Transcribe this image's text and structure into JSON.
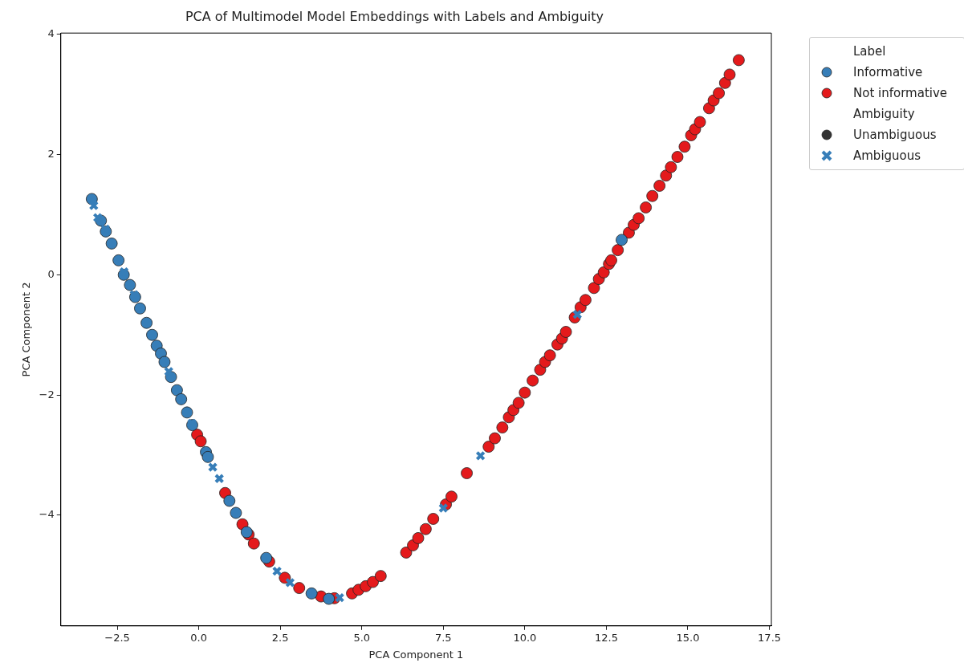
{
  "chart_data": {
    "type": "scatter",
    "title": "PCA of Multimodel Model Embeddings with Labels and Ambiguity",
    "xlabel": "PCA Component 1",
    "ylabel": "PCA Component 2",
    "legend_title": "Label",
    "annotations": [
      "Ambiguity",
      "Unambiguous"
    ],
    "legend": "top right",
    "grid": false,
    "xlim": [
      -4.23,
      17.56
    ],
    "ylim": [
      -5.84,
      4.02
    ],
    "xticks": [
      {
        "value": -2.5,
        "label": "−2.5"
      },
      {
        "value": 0,
        "label": "0.0"
      },
      {
        "value": 2.5,
        "label": "2.5"
      },
      {
        "value": 5,
        "label": "5.0"
      },
      {
        "value": 7.5,
        "label": "7.5"
      },
      {
        "value": 10,
        "label": "10.0"
      },
      {
        "value": 12.5,
        "label": "12.5"
      },
      {
        "value": 15,
        "label": "15.0"
      },
      {
        "value": 17.5,
        "label": "17.5"
      }
    ],
    "yticks": [
      {
        "value": -4,
        "label": "−4"
      },
      {
        "value": -2,
        "label": "−2"
      },
      0,
      2,
      4
    ],
    "series": [
      {
        "name": "Informative",
        "color": "#377eb8",
        "marker": "circle",
        "x": [
          -3.28,
          -3.0,
          -2.85,
          -2.67,
          -2.46,
          -2.3,
          -2.11,
          -1.95,
          -1.8,
          -1.6,
          -1.43,
          -1.29,
          -1.16,
          -1.05,
          -0.85,
          -0.67,
          -0.54,
          -0.36,
          -0.2,
          0.22,
          0.28,
          0.94,
          1.14,
          1.47,
          2.07,
          3.46,
          3.99,
          12.97
        ],
        "values": [
          1.26,
          0.9,
          0.72,
          0.52,
          0.24,
          0.0,
          -0.17,
          -0.37,
          -0.56,
          -0.8,
          -1.0,
          -1.18,
          -1.31,
          -1.45,
          -1.7,
          -1.92,
          -2.07,
          -2.29,
          -2.5,
          -2.95,
          -3.03,
          -3.76,
          -3.96,
          -4.28,
          -4.71,
          -5.3,
          -5.39,
          0.58
        ]
      },
      {
        "name": "Not informative",
        "color": "#e41a1c",
        "marker": "circle",
        "x": [
          -0.05,
          0.06,
          0.81,
          1.34,
          1.53,
          1.69,
          2.16,
          2.64,
          3.08,
          3.75,
          4.16,
          4.7,
          4.9,
          5.12,
          5.34,
          5.58,
          6.36,
          6.57,
          6.73,
          6.96,
          7.19,
          7.58,
          7.75,
          8.22,
          8.89,
          9.08,
          9.31,
          9.51,
          9.65,
          9.81,
          10.0,
          10.24,
          10.47,
          10.62,
          10.77,
          11.0,
          11.14,
          11.26,
          11.53,
          11.71,
          11.86,
          12.12,
          12.27,
          12.42,
          12.58,
          12.65,
          12.85,
          13.19,
          13.34,
          13.49,
          13.71,
          13.91,
          14.13,
          14.33,
          14.48,
          14.68,
          14.9,
          15.1,
          15.22,
          15.37,
          15.65,
          15.79,
          15.95,
          16.14,
          16.28,
          16.56
        ],
        "values": [
          -2.66,
          -2.77,
          -3.63,
          -4.15,
          -4.32,
          -4.47,
          -4.77,
          -5.04,
          -5.21,
          -5.35,
          -5.38,
          -5.3,
          -5.24,
          -5.18,
          -5.11,
          -5.01,
          -4.62,
          -4.5,
          -4.38,
          -4.23,
          -4.06,
          -3.82,
          -3.69,
          -3.3,
          -2.86,
          -2.72,
          -2.54,
          -2.37,
          -2.25,
          -2.13,
          -1.96,
          -1.76,
          -1.58,
          -1.45,
          -1.34,
          -1.16,
          -1.06,
          -0.95,
          -0.71,
          -0.54,
          -0.42,
          -0.22,
          -0.07,
          0.04,
          0.18,
          0.24,
          0.41,
          0.7,
          0.83,
          0.94,
          1.12,
          1.31,
          1.48,
          1.65,
          1.79,
          1.96,
          2.13,
          2.32,
          2.42,
          2.54,
          2.77,
          2.9,
          3.02,
          3.19,
          3.33,
          3.57
        ]
      },
      {
        "name": "Ambiguous",
        "color": "#377eb8",
        "marker": "cross",
        "x": [
          -3.22,
          -3.1,
          -2.86,
          -2.29,
          -1.98,
          -0.92,
          -0.21,
          0.43,
          0.63,
          2.4,
          2.8,
          4.32,
          7.5,
          8.64,
          11.61
        ],
        "values": [
          1.15,
          0.95,
          0.76,
          0.05,
          -0.33,
          -1.61,
          -2.47,
          -3.2,
          -3.39,
          -4.93,
          -5.12,
          -5.37,
          -3.88,
          -3.01,
          -0.66
        ]
      }
    ]
  }
}
